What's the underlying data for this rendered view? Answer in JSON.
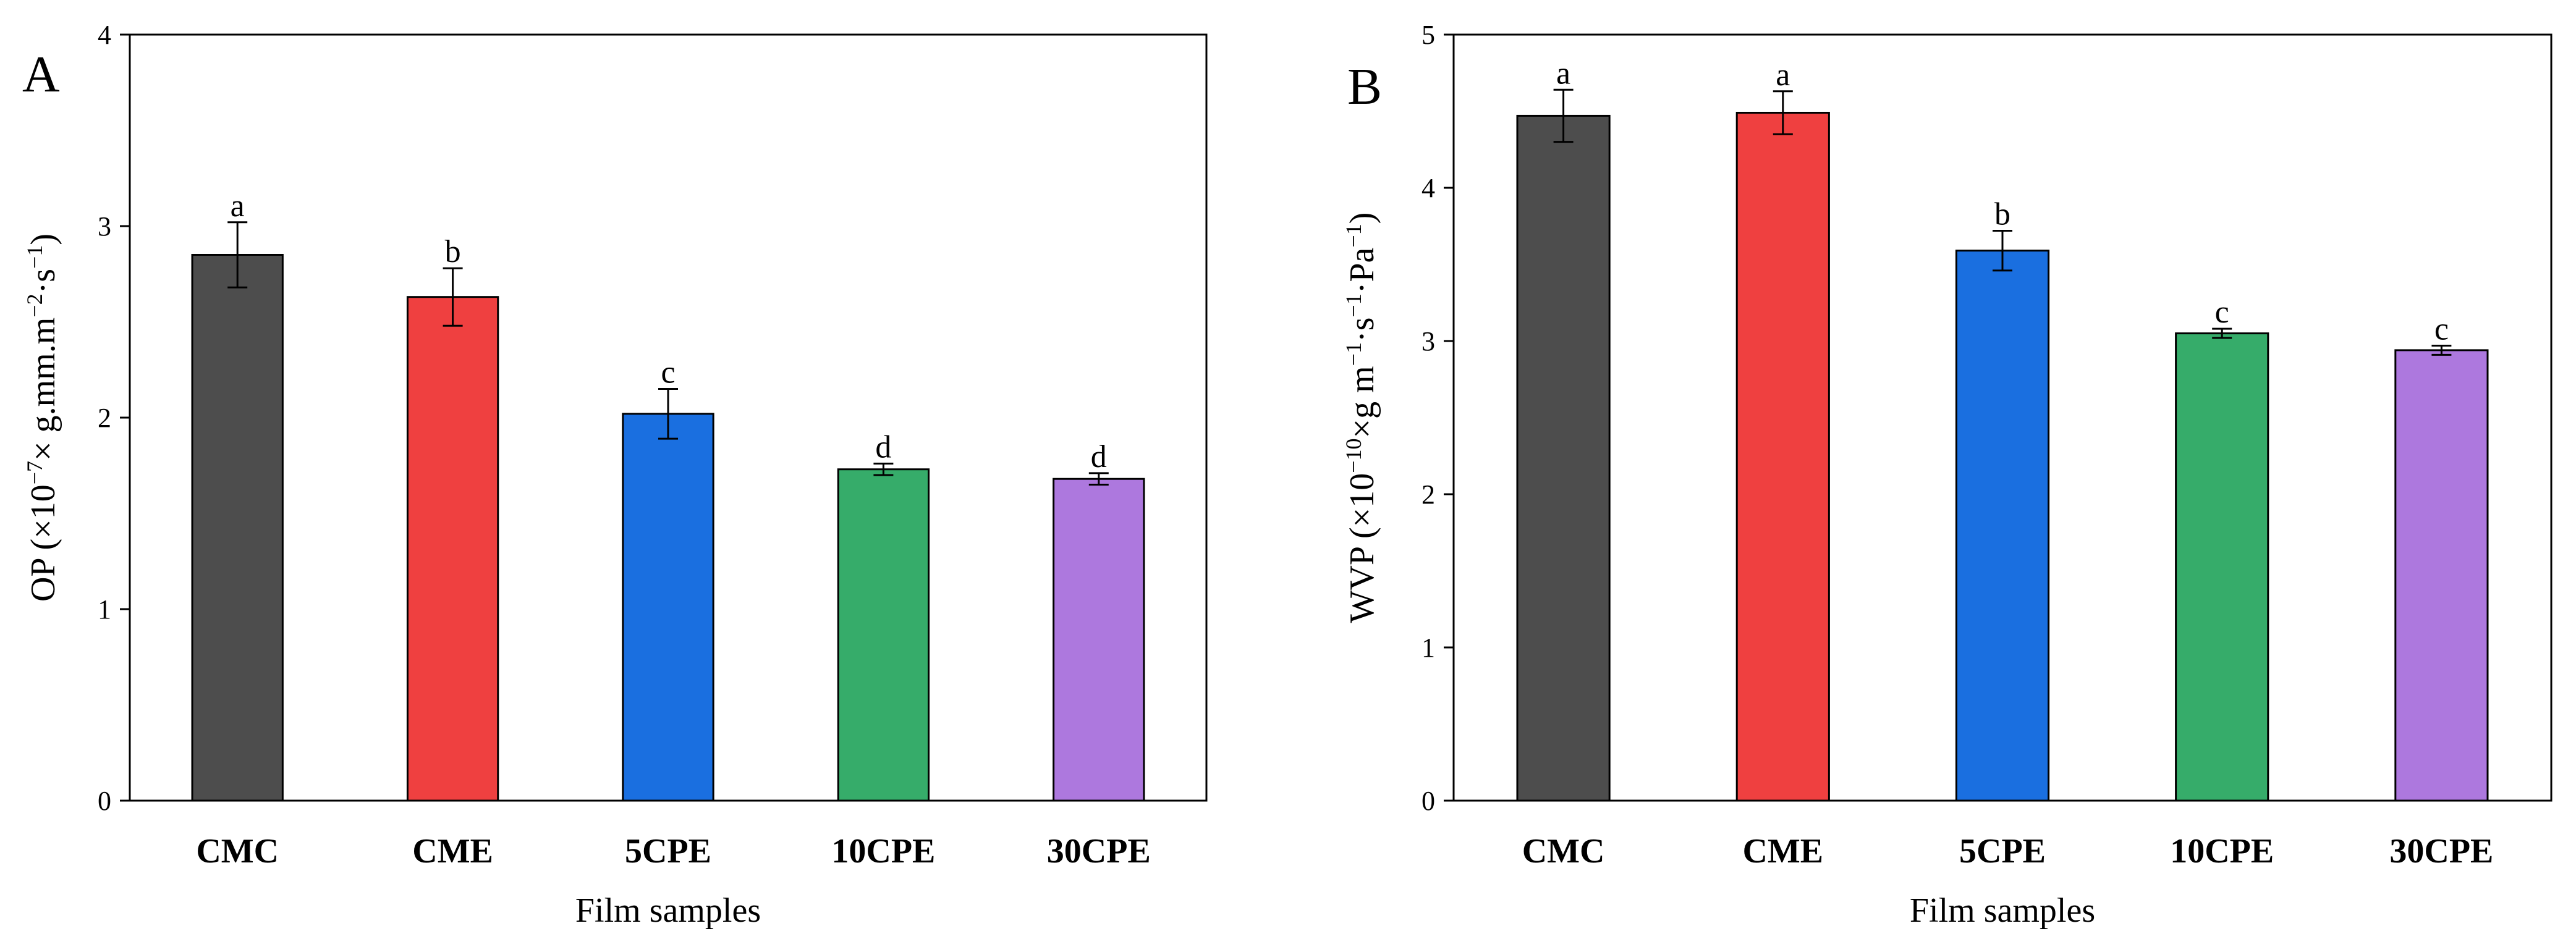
{
  "chart_data": [
    {
      "panel_label": "A",
      "type": "bar",
      "title": "",
      "xlabel": "Film samples",
      "ylabel": "OP (×10⁻⁷× g.mm.m⁻²·s⁻¹)",
      "ylabel_parts": {
        "pre": "OP (×10",
        "sup1": "−7",
        "mid": "× g.mm.m",
        "sup2": "−2",
        "mid2": "·s",
        "sup3": "−1",
        "post": ")"
      },
      "categories": [
        "CMC",
        "CME",
        "5CPE",
        "10CPE",
        "30CPE"
      ],
      "values": [
        2.85,
        2.63,
        2.02,
        1.73,
        1.68
      ],
      "errors": [
        0.17,
        0.15,
        0.13,
        0.03,
        0.03
      ],
      "significance": [
        "a",
        "b",
        "c",
        "d",
        "d"
      ],
      "colors": [
        "#4d4d4d",
        "#ef4040",
        "#1a6fe0",
        "#36ac6a",
        "#ad78de"
      ],
      "ylim": [
        0,
        4
      ],
      "yticks": [
        0,
        1,
        2,
        3,
        4
      ],
      "grid": false,
      "legend": "none"
    },
    {
      "panel_label": "B",
      "type": "bar",
      "title": "",
      "xlabel": "Film samples",
      "ylabel": "WVP (×10⁻¹⁰×g m⁻¹·s⁻¹·Pa⁻¹)",
      "ylabel_parts": {
        "pre": "WVP (×10",
        "sup1": "−10",
        "mid": "×g m",
        "sup2": "−1",
        "mid2": "·s",
        "sup3": "−1",
        "mid3": "·Pa",
        "sup4": "−1",
        "post": ")"
      },
      "categories": [
        "CMC",
        "CME",
        "5CPE",
        "10CPE",
        "30CPE"
      ],
      "values": [
        4.47,
        4.49,
        3.59,
        3.05,
        2.94
      ],
      "errors": [
        0.17,
        0.14,
        0.13,
        0.03,
        0.03
      ],
      "significance": [
        "a",
        "a",
        "b",
        "c",
        "c"
      ],
      "colors": [
        "#4d4d4d",
        "#ef4040",
        "#1a6fe0",
        "#36ac6a",
        "#ad78de"
      ],
      "ylim": [
        0,
        5
      ],
      "yticks": [
        0,
        1,
        2,
        3,
        4,
        5
      ],
      "grid": false,
      "legend": "none"
    }
  ]
}
